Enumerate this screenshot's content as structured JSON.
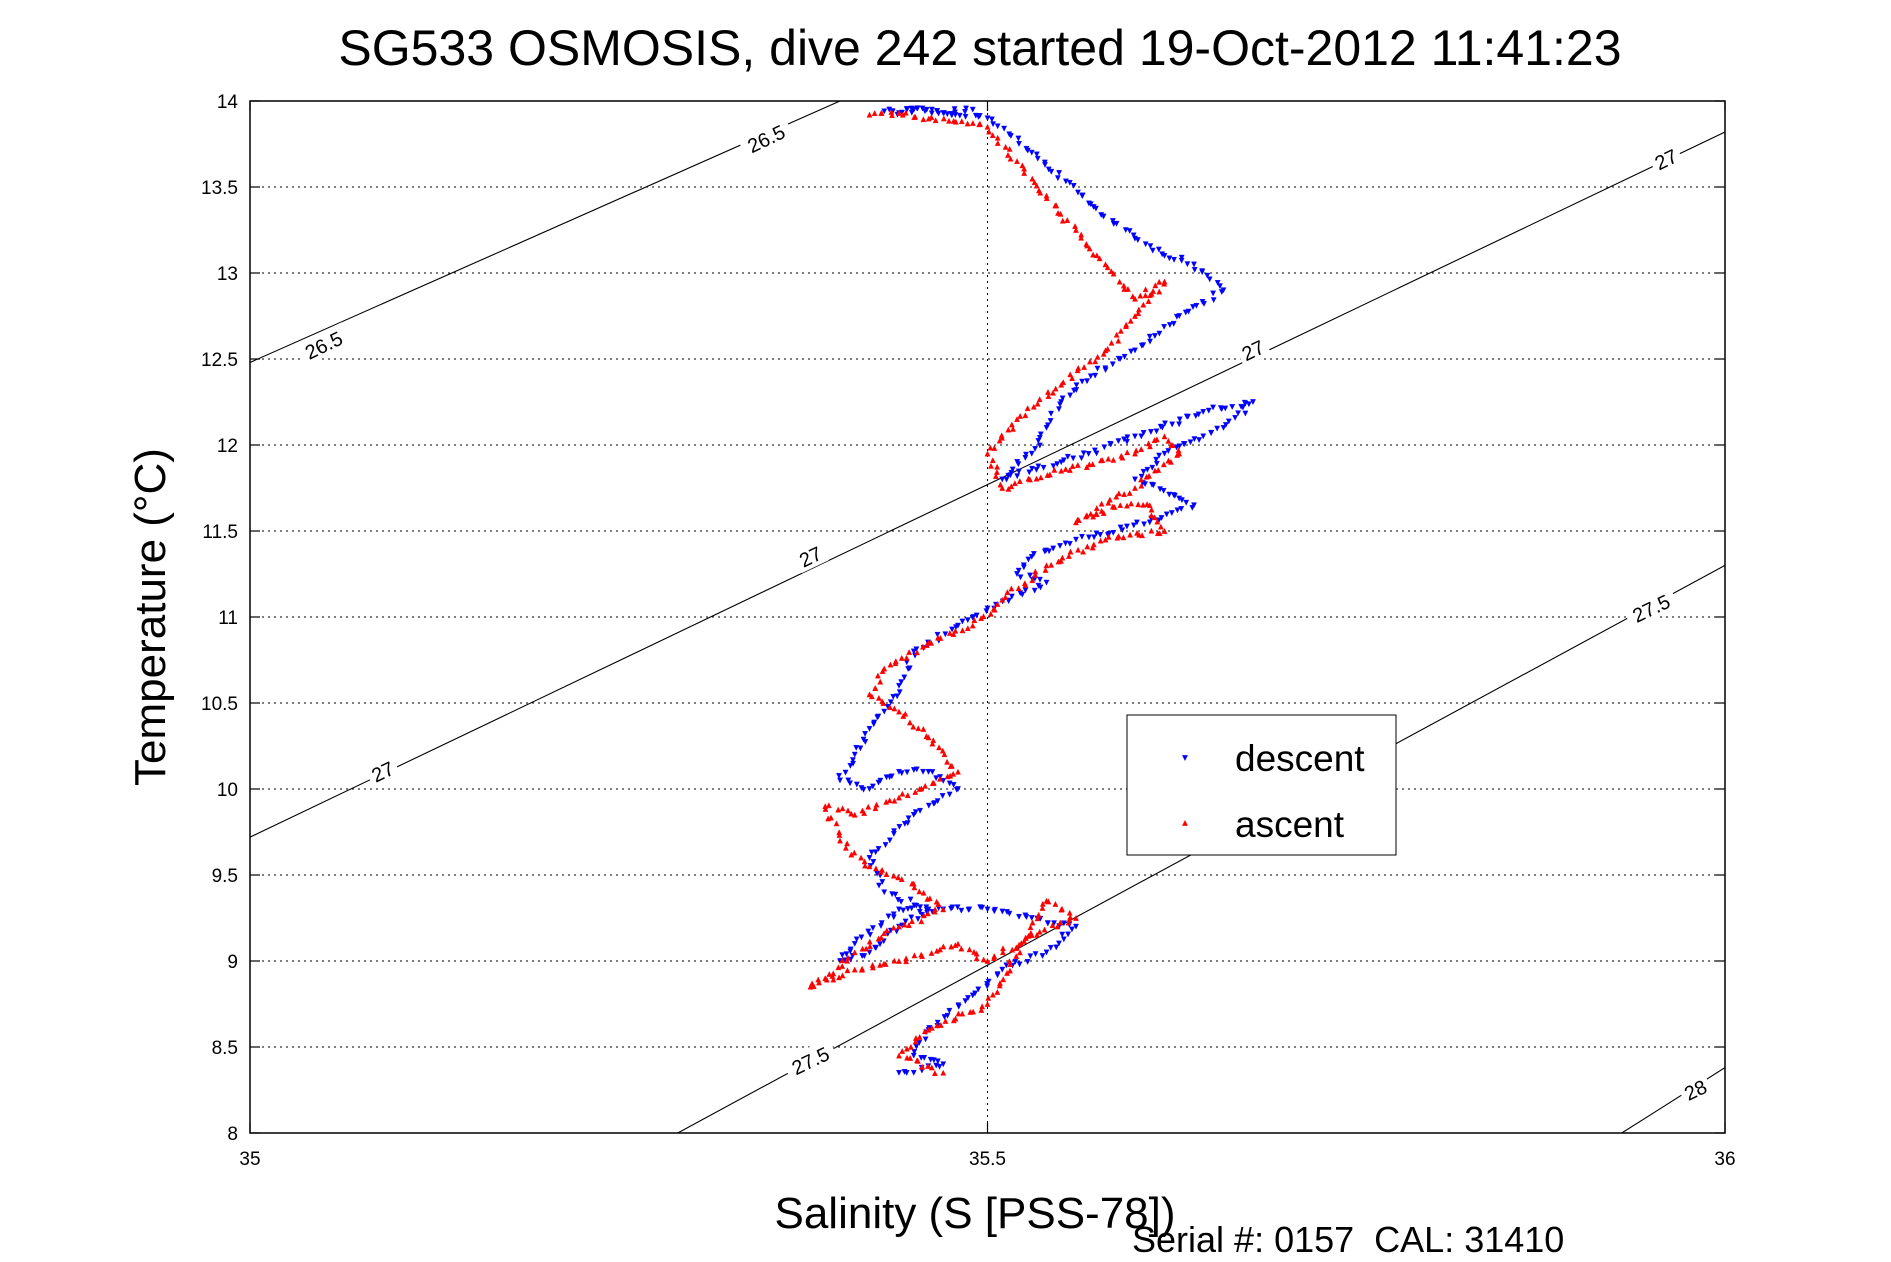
{
  "chart_data": {
    "type": "scatter",
    "title": "SG533 OSMOSIS, dive 242 started 19-Oct-2012 11:41:23",
    "xlabel": "Salinity (S [PSS-78])",
    "ylabel": "Temperature (°C)",
    "xlim": [
      35,
      36
    ],
    "ylim": [
      8,
      14
    ],
    "xticks": [
      35,
      35.5,
      36
    ],
    "xtick_labels": [
      "35",
      "35.5",
      "36"
    ],
    "yticks": [
      8,
      8.5,
      9,
      9.5,
      10,
      10.5,
      11,
      11.5,
      12,
      12.5,
      13,
      13.5,
      14
    ],
    "ytick_labels": [
      "8",
      "8.5",
      "9",
      "9.5",
      "10",
      "10.5",
      "11",
      "11.5",
      "12",
      "12.5",
      "13",
      "13.5",
      "14"
    ],
    "grid": true,
    "legend_position": "center-right",
    "footer": "Serial #: 0157  CAL: 31410",
    "series": [
      {
        "name": "descent",
        "marker": "triangle-down",
        "color": "#0000ff",
        "x": [
          35.49,
          35.47,
          35.45,
          35.43,
          35.44,
          35.45,
          35.5,
          35.53,
          35.57,
          35.6,
          35.62,
          35.64,
          35.66,
          35.63,
          35.6,
          35.57,
          35.55,
          35.54,
          35.53,
          35.51,
          35.55,
          35.6,
          35.65,
          35.68,
          35.66,
          35.62,
          35.6,
          35.64,
          35.61,
          35.56,
          35.53,
          35.52,
          35.54,
          35.5,
          35.48,
          35.45,
          35.44,
          35.43,
          35.42,
          35.41,
          35.4,
          35.42,
          35.44,
          35.46,
          35.48,
          35.45,
          35.42,
          35.43,
          35.46,
          35.44,
          35.42,
          35.4,
          35.41,
          35.44,
          35.47,
          35.5,
          35.53,
          35.56,
          35.54,
          35.51,
          35.49,
          35.46,
          35.45,
          35.47,
          35.45,
          35.44
        ],
        "y": [
          13.95,
          13.93,
          13.95,
          13.94,
          13.93,
          13.95,
          13.9,
          13.7,
          13.4,
          13.2,
          13.1,
          13.05,
          12.9,
          12.75,
          12.55,
          12.4,
          12.25,
          12.1,
          11.95,
          11.8,
          11.9,
          12.05,
          12.2,
          12.25,
          12.1,
          11.95,
          11.8,
          11.65,
          11.55,
          11.45,
          11.35,
          11.25,
          11.2,
          11.05,
          10.95,
          10.8,
          10.6,
          10.45,
          10.35,
          10.2,
          10.05,
          10.0,
          10.1,
          10.1,
          10.0,
          9.85,
          9.6,
          9.4,
          9.3,
          9.2,
          9.05,
          9.0,
          9.1,
          9.3,
          9.3,
          9.3,
          9.25,
          9.2,
          9.05,
          8.95,
          8.8,
          8.6,
          8.45,
          8.4,
          8.35,
          8.35
        ]
      },
      {
        "name": "ascent",
        "marker": "triangle-up",
        "color": "#ff0000",
        "x": [
          35.42,
          35.44,
          35.5,
          35.52,
          35.54,
          35.56,
          35.58,
          35.6,
          35.62,
          35.6,
          35.58,
          35.55,
          35.52,
          35.5,
          35.51,
          35.55,
          35.6,
          35.62,
          35.63,
          35.6,
          35.57,
          35.56,
          35.59,
          35.61,
          35.62,
          35.58,
          35.54,
          35.51,
          35.49,
          35.46,
          35.43,
          35.42,
          35.44,
          35.46,
          35.48,
          35.44,
          35.41,
          35.39,
          35.4,
          35.42,
          35.45,
          35.47,
          35.44,
          35.41,
          35.39,
          35.38,
          35.41,
          35.44,
          35.48,
          35.5,
          35.53,
          35.56,
          35.54,
          35.5,
          35.46,
          35.44,
          35.47
        ],
        "y": [
          13.92,
          13.93,
          13.85,
          13.65,
          13.45,
          13.25,
          13.05,
          12.85,
          12.95,
          12.75,
          12.55,
          12.35,
          12.15,
          11.95,
          11.75,
          11.85,
          11.95,
          12.05,
          11.95,
          11.75,
          11.6,
          11.55,
          11.65,
          11.65,
          11.5,
          11.45,
          11.3,
          11.1,
          10.95,
          10.85,
          10.7,
          10.55,
          10.45,
          10.3,
          10.1,
          9.95,
          9.85,
          9.9,
          9.7,
          9.55,
          9.45,
          9.3,
          9.2,
          9.05,
          8.9,
          8.85,
          8.95,
          9.0,
          9.1,
          9.0,
          9.15,
          9.25,
          9.35,
          8.75,
          8.6,
          8.45,
          8.35
        ]
      }
    ],
    "isopycnals": {
      "labels": [
        "26.5",
        "27",
        "27.5",
        "28"
      ],
      "values": [
        26.5,
        27,
        27.5,
        28
      ],
      "lines": [
        {
          "value": 26.5,
          "points": [
            [
              35.0,
              12.48
            ],
            [
              35.4,
              14.0
            ]
          ]
        },
        {
          "value": 27,
          "points": [
            [
              35.0,
              9.72
            ],
            [
              36.0,
              13.82
            ]
          ]
        },
        {
          "value": 27.5,
          "points": [
            [
              35.29,
              8.0
            ],
            [
              36.0,
              11.3
            ]
          ]
        },
        {
          "value": 28,
          "points": [
            [
              35.93,
              8.0
            ],
            [
              36.0,
              8.38
            ]
          ]
        }
      ],
      "label_positions": [
        {
          "text": "26.5",
          "x": 35.35,
          "y": 13.78
        },
        {
          "text": "26.5",
          "x": 35.05,
          "y": 12.58
        },
        {
          "text": "27",
          "x": 35.96,
          "y": 13.66
        },
        {
          "text": "27",
          "x": 35.68,
          "y": 12.55
        },
        {
          "text": "27",
          "x": 35.38,
          "y": 11.35
        },
        {
          "text": "27",
          "x": 35.09,
          "y": 10.1
        },
        {
          "text": "27.5",
          "x": 35.95,
          "y": 11.05
        },
        {
          "text": "27.5",
          "x": 35.38,
          "y": 8.42
        },
        {
          "text": "28",
          "x": 35.98,
          "y": 8.25
        }
      ]
    }
  }
}
